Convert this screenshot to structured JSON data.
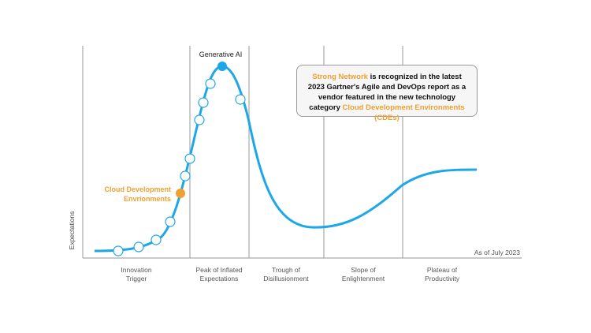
{
  "axis": {
    "y_label": "Expectations",
    "note": "As of July 2023"
  },
  "phases": [
    [
      "Innovation",
      "Trigger"
    ],
    [
      "Peak of Inflated",
      "Expectations"
    ],
    [
      "Trough of",
      "Disillusionment"
    ],
    [
      "Slope of",
      "Enlightenment"
    ],
    [
      "Plateau of",
      "Productivity"
    ]
  ],
  "markers": {
    "peak_label": "Generative AI",
    "orange_label": [
      "Cloud Development",
      "Envrionments"
    ]
  },
  "callout": {
    "highlight_1": "Strong Network",
    "text": "is recognized in the latest 2023 Gartner's Agile and DevOps report as a vendor featured in the new technology category",
    "highlight_2": "Cloud Development Environments (CDEs)"
  }
}
